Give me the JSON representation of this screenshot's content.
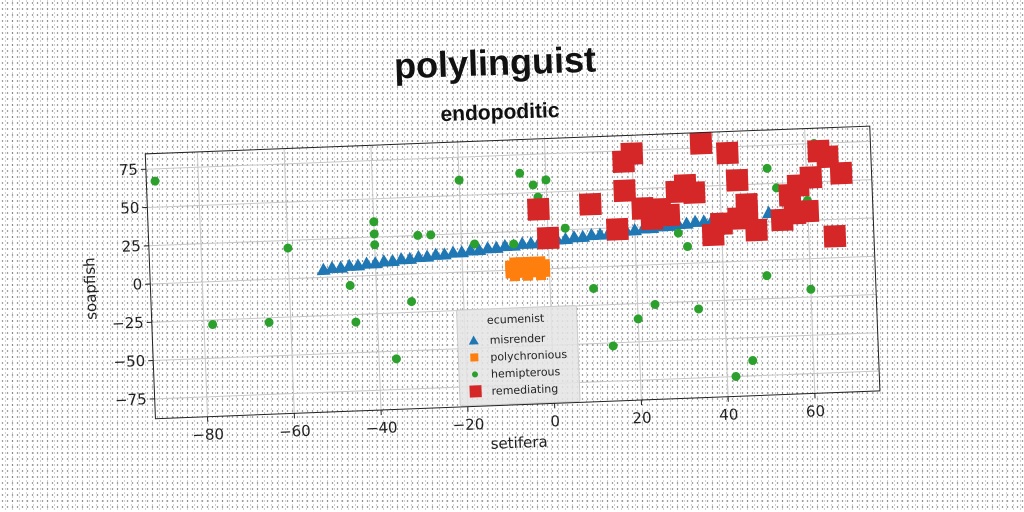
{
  "chart_data": {
    "type": "scatter",
    "title": "polylinguist",
    "subtitle": "endopoditic",
    "xlabel": "setifera",
    "ylabel": "soapfish",
    "xlim": [
      -92,
      75
    ],
    "ylim": [
      -88,
      85
    ],
    "xticks": [
      -80,
      -60,
      -40,
      -20,
      0,
      20,
      40,
      60
    ],
    "yticks": [
      75,
      50,
      25,
      0,
      -25,
      -50,
      -75
    ],
    "grid": true,
    "legend_position": "lower-center",
    "legend_title": "ecumenist",
    "series": [
      {
        "name": "misrender",
        "marker": "triangle",
        "color": "#1f77b4",
        "points": [
          [
            -52,
            5
          ],
          [
            -50,
            6
          ],
          [
            -48,
            6
          ],
          [
            -46,
            7
          ],
          [
            -44,
            7
          ],
          [
            -42,
            8
          ],
          [
            -40,
            8
          ],
          [
            -38,
            9
          ],
          [
            -36,
            9
          ],
          [
            -34,
            10
          ],
          [
            -32,
            10
          ],
          [
            -30,
            11
          ],
          [
            -28,
            11
          ],
          [
            -26,
            12
          ],
          [
            -24,
            12
          ],
          [
            -22,
            13
          ],
          [
            -20,
            13
          ],
          [
            -18,
            14
          ],
          [
            -16,
            14
          ],
          [
            -14,
            15
          ],
          [
            -12,
            15
          ],
          [
            -10,
            16
          ],
          [
            -8,
            16
          ],
          [
            -6,
            17
          ],
          [
            -4,
            17
          ],
          [
            -2,
            18
          ],
          [
            0,
            18
          ],
          [
            2,
            19
          ],
          [
            4,
            19
          ],
          [
            6,
            20
          ],
          [
            8,
            20
          ],
          [
            10,
            21
          ],
          [
            12,
            21
          ],
          [
            14,
            22
          ],
          [
            16,
            22
          ],
          [
            18,
            23
          ],
          [
            20,
            23
          ],
          [
            22,
            24
          ],
          [
            24,
            24
          ],
          [
            26,
            25
          ],
          [
            28,
            25
          ],
          [
            30,
            26
          ],
          [
            32,
            26
          ],
          [
            34,
            27
          ],
          [
            36,
            27
          ],
          [
            38,
            28
          ],
          [
            40,
            28
          ],
          [
            43,
            29
          ],
          [
            47,
            30
          ],
          [
            51,
            31
          ]
        ]
      },
      {
        "name": "polychronious",
        "marker": "square",
        "color": "#ff7f0e",
        "points": [
          [
            -9,
            -2
          ],
          [
            -7,
            -2
          ],
          [
            -5,
            -2
          ],
          [
            -3,
            -2
          ],
          [
            -1,
            -2
          ],
          [
            -9,
            1
          ],
          [
            -7,
            1
          ],
          [
            -5,
            1
          ],
          [
            -3,
            1
          ],
          [
            -1,
            1
          ],
          [
            -9,
            3
          ],
          [
            -7,
            3
          ],
          [
            -5,
            3
          ],
          [
            -3,
            3
          ],
          [
            -1,
            3
          ],
          [
            -8,
            5
          ],
          [
            -6,
            5
          ],
          [
            -4,
            5
          ],
          [
            -2,
            5
          ],
          [
            -8,
            -4
          ],
          [
            -5,
            -4
          ],
          [
            -2,
            -4
          ]
        ]
      },
      {
        "name": "hemipterous",
        "marker": "circle",
        "color": "#2ca02c",
        "points": [
          [
            -90,
            67
          ],
          [
            -78,
            -28
          ],
          [
            -65,
            -28
          ],
          [
            -60,
            20
          ],
          [
            -46,
            -6
          ],
          [
            -45,
            -30
          ],
          [
            -40,
            35
          ],
          [
            -40,
            27
          ],
          [
            -40,
            20
          ],
          [
            -36,
            -55
          ],
          [
            -32,
            -18
          ],
          [
            -30,
            25
          ],
          [
            -27,
            25
          ],
          [
            -20,
            60
          ],
          [
            -17,
            18
          ],
          [
            -8,
            17
          ],
          [
            -6,
            63
          ],
          [
            -3,
            55
          ],
          [
            -2,
            47
          ],
          [
            0,
            58
          ],
          [
            4,
            26
          ],
          [
            10,
            -14
          ],
          [
            14,
            -52
          ],
          [
            20,
            -35
          ],
          [
            24,
            -26
          ],
          [
            26,
            28
          ],
          [
            30,
            20
          ],
          [
            32,
            11
          ],
          [
            34,
            -30
          ],
          [
            40,
            20
          ],
          [
            42,
            -75
          ],
          [
            46,
            -65
          ],
          [
            50,
            -10
          ],
          [
            51,
            60
          ],
          [
            53,
            47
          ],
          [
            57,
            47
          ],
          [
            60,
            38
          ],
          [
            60,
            -20
          ],
          [
            62,
            75
          ]
        ]
      },
      {
        "name": "remediating",
        "marker": "big-square",
        "color": "#d62728",
        "points": [
          [
            -2,
            39
          ],
          [
            0,
            20
          ],
          [
            10,
            41
          ],
          [
            16,
            24
          ],
          [
            18,
            49
          ],
          [
            18,
            68
          ],
          [
            20,
            73
          ],
          [
            22,
            37
          ],
          [
            24,
            30
          ],
          [
            26,
            36
          ],
          [
            28,
            32
          ],
          [
            30,
            47
          ],
          [
            32,
            51
          ],
          [
            34,
            46
          ],
          [
            36,
            78
          ],
          [
            38,
            18
          ],
          [
            40,
            25
          ],
          [
            42,
            71
          ],
          [
            44,
            28
          ],
          [
            44,
            53
          ],
          [
            46,
            31
          ],
          [
            46,
            37
          ],
          [
            48,
            20
          ],
          [
            54,
            26
          ],
          [
            56,
            42
          ],
          [
            57,
            30
          ],
          [
            58,
            48
          ],
          [
            60,
            31
          ],
          [
            61,
            53
          ],
          [
            63,
            70
          ],
          [
            65,
            66
          ],
          [
            66,
            14
          ],
          [
            68,
            55
          ]
        ]
      }
    ]
  }
}
